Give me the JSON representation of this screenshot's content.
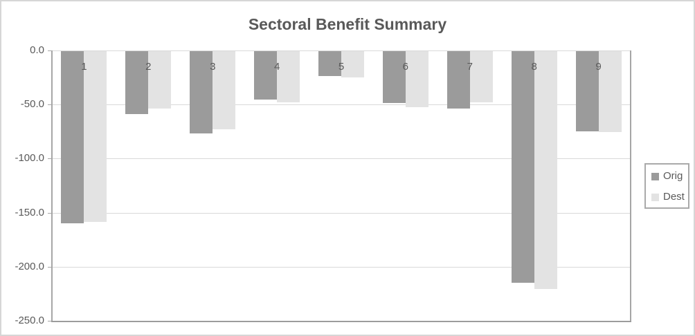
{
  "chart_data": {
    "type": "bar",
    "title": "Sectoral Benefit Summary",
    "categories": [
      "1",
      "2",
      "3",
      "4",
      "5",
      "6",
      "7",
      "8",
      "9"
    ],
    "series": [
      {
        "name": "Orig",
        "color": "#9b9b9b",
        "values": [
          -159,
          -58,
          -76,
          -45,
          -23,
          -48,
          -53,
          -214,
          -74
        ]
      },
      {
        "name": "Dest",
        "color": "#e3e3e3",
        "values": [
          -158,
          -53,
          -72,
          -47,
          -24,
          -52,
          -47,
          -220,
          -75
        ]
      }
    ],
    "ylim": [
      -250,
      0
    ],
    "ytick_step": 50,
    "ytick_labels": [
      "0.0",
      "-50.0",
      "-100.0",
      "-150.0",
      "-200.0",
      "-250.0"
    ],
    "xlabel": "",
    "ylabel": "",
    "grid": true,
    "legend": {
      "position": "right",
      "entries": [
        "Orig",
        "Dest"
      ]
    },
    "colors": {
      "gridline": "#d9d9d9",
      "axis_line": "#a6a6a6",
      "plot_bottom_border": "#9c9c9c",
      "text": "#595959",
      "chart_border": "#d6d6d6",
      "background": "#ffffff"
    }
  }
}
